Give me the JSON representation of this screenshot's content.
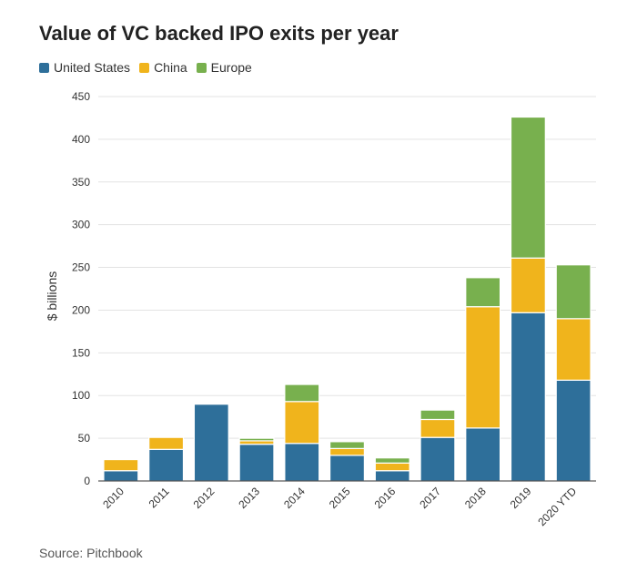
{
  "chart_data": {
    "type": "bar",
    "stacked": true,
    "title": "Value of VC backed IPO exits per year",
    "ylabel": "$ billions",
    "xlabel": "",
    "ylim": [
      0,
      450
    ],
    "yticks": [
      0,
      50,
      100,
      150,
      200,
      250,
      300,
      350,
      400,
      450
    ],
    "grid": true,
    "legend_position": "top-left",
    "categories": [
      "2010",
      "2011",
      "2012",
      "2013",
      "2014",
      "2015",
      "2016",
      "2017",
      "2018",
      "2019",
      "2020 YTD"
    ],
    "series": [
      {
        "name": "United States",
        "color": "#2e6f9a",
        "values": [
          12,
          37,
          90,
          43,
          44,
          30,
          12,
          51,
          62,
          197,
          118
        ]
      },
      {
        "name": "China",
        "color": "#f0b41c",
        "values": [
          13,
          14,
          0,
          4,
          49,
          8,
          9,
          21,
          142,
          64,
          72
        ]
      },
      {
        "name": "Europe",
        "color": "#78b04e",
        "values": [
          0,
          0,
          1,
          3,
          20,
          8,
          6,
          11,
          34,
          165,
          63
        ]
      }
    ],
    "source": "Source: Pitchbook"
  }
}
